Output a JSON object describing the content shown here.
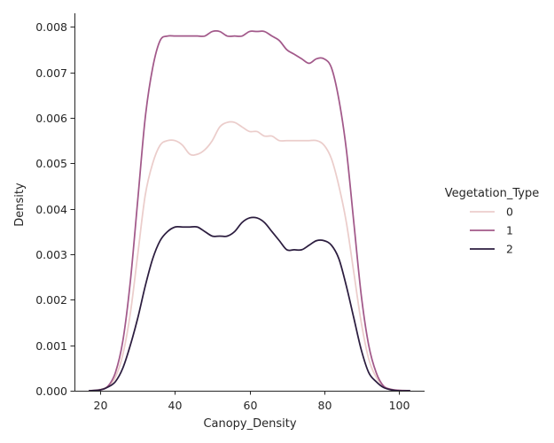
{
  "chart_data": {
    "type": "line",
    "title": "",
    "xlabel": "Canopy_Density",
    "ylabel": "Density",
    "xlim": [
      13,
      107
    ],
    "ylim": [
      0,
      0.0083
    ],
    "x_ticks": [
      20,
      40,
      60,
      80,
      100
    ],
    "y_ticks": [
      0.0,
      0.001,
      0.002,
      0.003,
      0.004,
      0.005,
      0.006,
      0.007,
      0.008
    ],
    "grid": false,
    "legend": {
      "title": "Vegetation_Type",
      "placement": "outside-right"
    },
    "series": [
      {
        "name": "0",
        "color": "#ebcdcb",
        "points": [
          [
            17,
            0.0
          ],
          [
            20,
            3e-05
          ],
          [
            22,
            0.0001
          ],
          [
            24,
            0.0003
          ],
          [
            26,
            0.0008
          ],
          [
            28,
            0.0017
          ],
          [
            30,
            0.003
          ],
          [
            32,
            0.0043
          ],
          [
            34,
            0.005
          ],
          [
            36,
            0.0054
          ],
          [
            38,
            0.0055
          ],
          [
            40,
            0.0055
          ],
          [
            42,
            0.0054
          ],
          [
            44,
            0.0052
          ],
          [
            46,
            0.0052
          ],
          [
            48,
            0.0053
          ],
          [
            50,
            0.0055
          ],
          [
            52,
            0.0058
          ],
          [
            54,
            0.0059
          ],
          [
            56,
            0.0059
          ],
          [
            58,
            0.0058
          ],
          [
            60,
            0.0057
          ],
          [
            62,
            0.0057
          ],
          [
            64,
            0.0056
          ],
          [
            66,
            0.0056
          ],
          [
            68,
            0.0055
          ],
          [
            70,
            0.0055
          ],
          [
            72,
            0.0055
          ],
          [
            74,
            0.0055
          ],
          [
            76,
            0.0055
          ],
          [
            78,
            0.0055
          ],
          [
            80,
            0.0054
          ],
          [
            82,
            0.0051
          ],
          [
            84,
            0.0045
          ],
          [
            86,
            0.0037
          ],
          [
            88,
            0.0026
          ],
          [
            90,
            0.0015
          ],
          [
            92,
            0.0007
          ],
          [
            94,
            0.0003
          ],
          [
            96,
            0.0001
          ],
          [
            98,
            3e-05
          ],
          [
            100,
            1e-05
          ],
          [
            103,
            0.0
          ]
        ]
      },
      {
        "name": "1",
        "color": "#a2598a",
        "points": [
          [
            17,
            0.0
          ],
          [
            20,
            2e-05
          ],
          [
            22,
            0.0001
          ],
          [
            24,
            0.0004
          ],
          [
            26,
            0.0011
          ],
          [
            28,
            0.0024
          ],
          [
            30,
            0.0042
          ],
          [
            32,
            0.006
          ],
          [
            34,
            0.0071
          ],
          [
            36,
            0.0077
          ],
          [
            38,
            0.0078
          ],
          [
            40,
            0.0078
          ],
          [
            42,
            0.0078
          ],
          [
            44,
            0.0078
          ],
          [
            46,
            0.0078
          ],
          [
            48,
            0.0078
          ],
          [
            50,
            0.0079
          ],
          [
            52,
            0.0079
          ],
          [
            54,
            0.0078
          ],
          [
            56,
            0.0078
          ],
          [
            58,
            0.0078
          ],
          [
            60,
            0.0079
          ],
          [
            62,
            0.0079
          ],
          [
            64,
            0.0079
          ],
          [
            66,
            0.0078
          ],
          [
            68,
            0.0077
          ],
          [
            70,
            0.0075
          ],
          [
            72,
            0.0074
          ],
          [
            74,
            0.0073
          ],
          [
            76,
            0.0072
          ],
          [
            78,
            0.0073
          ],
          [
            80,
            0.0073
          ],
          [
            82,
            0.0071
          ],
          [
            84,
            0.0064
          ],
          [
            86,
            0.0053
          ],
          [
            88,
            0.0037
          ],
          [
            90,
            0.0021
          ],
          [
            92,
            0.001
          ],
          [
            94,
            0.0004
          ],
          [
            96,
            0.0001
          ],
          [
            98,
            3e-05
          ],
          [
            100,
            1e-05
          ],
          [
            103,
            0.0
          ]
        ]
      },
      {
        "name": "2",
        "color": "#2c1d3f",
        "points": [
          [
            17,
            0.0
          ],
          [
            20,
            2e-05
          ],
          [
            22,
            8e-05
          ],
          [
            24,
            0.0002
          ],
          [
            26,
            0.0005
          ],
          [
            28,
            0.001
          ],
          [
            30,
            0.0016
          ],
          [
            32,
            0.0023
          ],
          [
            34,
            0.0029
          ],
          [
            36,
            0.0033
          ],
          [
            38,
            0.0035
          ],
          [
            40,
            0.0036
          ],
          [
            42,
            0.0036
          ],
          [
            44,
            0.0036
          ],
          [
            46,
            0.0036
          ],
          [
            48,
            0.0035
          ],
          [
            50,
            0.0034
          ],
          [
            52,
            0.0034
          ],
          [
            54,
            0.0034
          ],
          [
            56,
            0.0035
          ],
          [
            58,
            0.0037
          ],
          [
            60,
            0.0038
          ],
          [
            62,
            0.0038
          ],
          [
            64,
            0.0037
          ],
          [
            66,
            0.0035
          ],
          [
            68,
            0.0033
          ],
          [
            70,
            0.0031
          ],
          [
            72,
            0.0031
          ],
          [
            74,
            0.0031
          ],
          [
            76,
            0.0032
          ],
          [
            78,
            0.0033
          ],
          [
            80,
            0.0033
          ],
          [
            82,
            0.0032
          ],
          [
            84,
            0.0029
          ],
          [
            86,
            0.0023
          ],
          [
            88,
            0.0016
          ],
          [
            90,
            0.0009
          ],
          [
            92,
            0.0004
          ],
          [
            94,
            0.0002
          ],
          [
            96,
            7e-05
          ],
          [
            98,
            2e-05
          ],
          [
            100,
            0.0
          ],
          [
            103,
            0.0
          ]
        ]
      }
    ]
  }
}
